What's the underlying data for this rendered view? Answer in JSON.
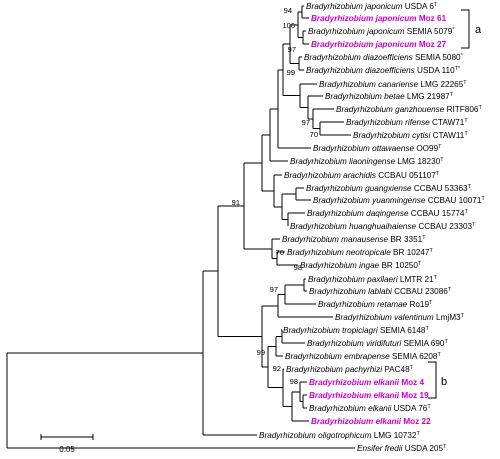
{
  "taxa": [
    {
      "genus_species": "Bradyrhizobium japonicum",
      "strain": "USDA 6",
      "mark": "T",
      "highlight": false
    },
    {
      "genus_species": "Bradyrhizobium japonicum",
      "strain": "Moz 61",
      "mark": "",
      "highlight": true
    },
    {
      "genus_species": "Bradyrhizobium japonicum",
      "strain": "SEMIA 5079",
      "mark": "*",
      "highlight": false
    },
    {
      "genus_species": "Bradyrhizobium japonicum",
      "strain": "Moz 27",
      "mark": "",
      "highlight": true
    },
    {
      "genus_species": "Bradyrhizobium diazoefficiens",
      "strain": "SEMIA 5080",
      "mark": "*",
      "highlight": false
    },
    {
      "genus_species": "Bradyrhizobium diazoefficiens",
      "strain": "USDA 110",
      "mark": "T*",
      "highlight": false
    },
    {
      "genus_species": "Bradyrhizobium canariense",
      "strain": "LMG 22265",
      "mark": "T",
      "highlight": false
    },
    {
      "genus_species": "Bradyrhizobium betae",
      "strain": "LMG 21987",
      "mark": "T",
      "highlight": false
    },
    {
      "genus_species": "Bradyrhizobium ganzhouense",
      "strain": "RITF806",
      "mark": "T",
      "highlight": false
    },
    {
      "genus_species": "Bradyrhizobium rifense",
      "strain": "CTAW71",
      "mark": "T",
      "highlight": false
    },
    {
      "genus_species": "Bradyrhizobium cytisi",
      "strain": "CTAW11",
      "mark": "T",
      "highlight": false
    },
    {
      "genus_species": "Bradyrhizobium ottawaense",
      "strain": "OO99",
      "mark": "T",
      "highlight": false
    },
    {
      "genus_species": "Bradyrhizobium liaoningense",
      "strain": "LMG 18230",
      "mark": "T",
      "highlight": false
    },
    {
      "genus_species": "Bradyrhizobium arachidis",
      "strain": "CCBAU 051107",
      "mark": "T",
      "highlight": false
    },
    {
      "genus_species": "Bradyrhizobium guangxiense",
      "strain": "CCBAU 53363",
      "mark": "T",
      "highlight": false
    },
    {
      "genus_species": "Bradyrhizobium yuanmingense",
      "strain": "CCBAU 10071",
      "mark": "T",
      "highlight": false
    },
    {
      "genus_species": "Bradyrhizobium daqingense",
      "strain": "CCBAU 15774",
      "mark": "T",
      "highlight": false
    },
    {
      "genus_species": "Bradyrhizobium huanghuaihaiense",
      "strain": "CCBAU 23303",
      "mark": "T",
      "highlight": false
    },
    {
      "genus_species": "Bradyrhizobium manausense",
      "strain": "BR 3351",
      "mark": "T",
      "highlight": false
    },
    {
      "genus_species": "Bradyrhizobium neotropicale",
      "strain": "BR 10247",
      "mark": "T",
      "highlight": false
    },
    {
      "genus_species": "Bradyrhizobium ingae",
      "strain": "BR 10250",
      "mark": "T",
      "highlight": false
    },
    {
      "genus_species": "Bradyrhizobium paxllaeri",
      "strain": "LMTR 21",
      "mark": "T",
      "highlight": false
    },
    {
      "genus_species": "Bradyrhizobium lablabi",
      "strain": "CCBAU 23086",
      "mark": "T",
      "highlight": false
    },
    {
      "genus_species": "Bradyrhizobium retamae",
      "strain": "Ro19",
      "mark": "T",
      "highlight": false
    },
    {
      "genus_species": "Bradyrhizobium valentinum",
      "strain": "LmjM3",
      "mark": "T",
      "highlight": false
    },
    {
      "genus_species": "Bradyrhizobium tropiciagri",
      "strain": "SEMIA 6148",
      "mark": "T",
      "highlight": false
    },
    {
      "genus_species": "Bradyrhizobium viridifuturi",
      "strain": "SEMIA 690",
      "mark": "T",
      "highlight": false
    },
    {
      "genus_species": "Bradyrhizobium embrapense",
      "strain": "SEMIA 6208",
      "mark": "T",
      "highlight": false
    },
    {
      "genus_species": "Bradyrhizobium pachyrhizi",
      "strain": "PAC48",
      "mark": "T",
      "highlight": false
    },
    {
      "genus_species": "Bradyrhizobium elkanii",
      "strain": "Moz 4",
      "mark": "",
      "highlight": true
    },
    {
      "genus_species": "Bradyrhizobium elkanii",
      "strain": "Moz 19",
      "mark": "",
      "highlight": true
    },
    {
      "genus_species": "Bradyrhizobium elkanii",
      "strain": "USDA 76",
      "mark": "T",
      "highlight": false
    },
    {
      "genus_species": "Bradyrhizobium elkanii",
      "strain": "Moz 22",
      "mark": "",
      "highlight": true
    },
    {
      "genus_species": "Bradyrhizobium oligotrophicum",
      "strain": "LMG 10732",
      "mark": "T",
      "highlight": false
    },
    {
      "genus_species": "Ensifer fredii",
      "strain": "USDA 205",
      "mark": "T",
      "highlight": false
    }
  ],
  "bootstrap": [
    "94",
    "100",
    "97",
    "99",
    "97",
    "70",
    "91",
    "70",
    "98",
    "97",
    "99",
    "92",
    "98"
  ],
  "clades": [
    "a",
    "b"
  ],
  "scale_bar": {
    "label": "0.05"
  },
  "colors": {
    "highlight": "#cc00cc",
    "branch": "#000000"
  }
}
